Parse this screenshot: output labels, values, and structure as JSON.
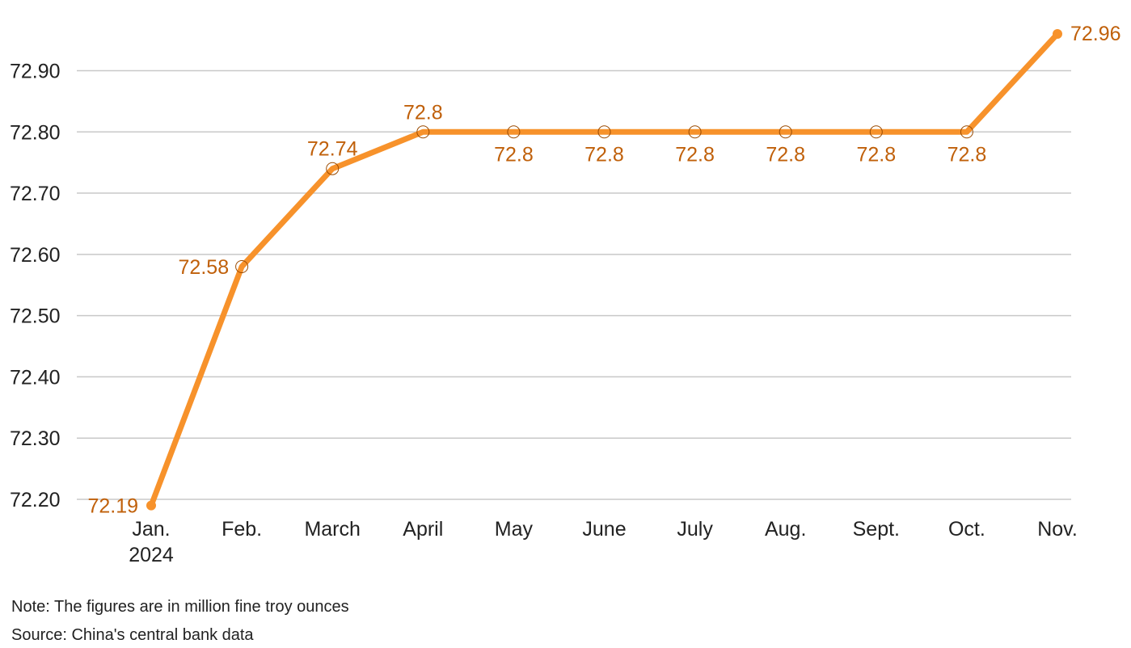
{
  "chart_data": {
    "type": "line",
    "categories": [
      "Jan.\n2024",
      "Feb.",
      "March",
      "April",
      "May",
      "June",
      "July",
      "Aug.",
      "Sept.",
      "Oct.",
      "Nov."
    ],
    "series": [
      {
        "color": "#f7922b",
        "values": [
          72.19,
          72.58,
          72.74,
          72.8,
          72.8,
          72.8,
          72.8,
          72.8,
          72.8,
          72.8,
          72.96
        ]
      }
    ],
    "ylim": [
      72.2,
      72.96
    ],
    "yticks": [
      {
        "value": 72.2,
        "label": "72.20"
      },
      {
        "value": 72.3,
        "label": "72.30"
      },
      {
        "value": 72.4,
        "label": "72.40"
      },
      {
        "value": 72.5,
        "label": "72.50"
      },
      {
        "value": 72.6,
        "label": "72.60"
      },
      {
        "value": 72.7,
        "label": "72.70"
      },
      {
        "value": 72.8,
        "label": "72.80"
      },
      {
        "value": 72.9,
        "label": "72.90"
      }
    ],
    "grid": true,
    "note": "Note: The figures are in million fine troy ounces",
    "source": "Source: China's central bank data"
  }
}
